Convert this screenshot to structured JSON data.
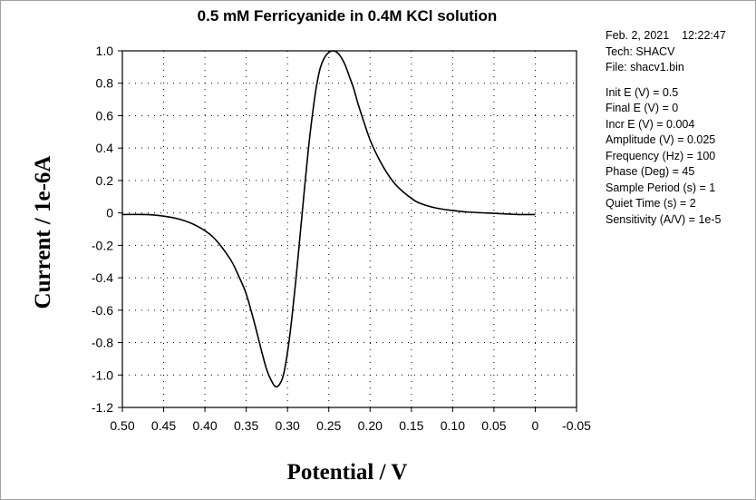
{
  "chart_data": {
    "type": "line",
    "title": "0.5 mM Ferricyanide in 0.4M KCl solution",
    "xlabel": "Potential / V",
    "ylabel": "Current / 1e-6A",
    "xlim": [
      0.5,
      -0.05
    ],
    "ylim": [
      -1.2,
      1.0
    ],
    "x_reversed": true,
    "grid": "dotted",
    "xticks": [
      {
        "v": 0.5,
        "label": "0.50"
      },
      {
        "v": 0.45,
        "label": "0.45"
      },
      {
        "v": 0.4,
        "label": "0.40"
      },
      {
        "v": 0.35,
        "label": "0.35"
      },
      {
        "v": 0.3,
        "label": "0.30"
      },
      {
        "v": 0.25,
        "label": "0.25"
      },
      {
        "v": 0.2,
        "label": "0.20"
      },
      {
        "v": 0.15,
        "label": "0.15"
      },
      {
        "v": 0.1,
        "label": "0.10"
      },
      {
        "v": 0.05,
        "label": "0.05"
      },
      {
        "v": 0.0,
        "label": "0"
      },
      {
        "v": -0.05,
        "label": "-0.05"
      }
    ],
    "yticks": [
      {
        "v": 1.0,
        "label": "1.0"
      },
      {
        "v": 0.8,
        "label": "0.8"
      },
      {
        "v": 0.6,
        "label": "0.6"
      },
      {
        "v": 0.4,
        "label": "0.4"
      },
      {
        "v": 0.2,
        "label": "0.2"
      },
      {
        "v": 0.0,
        "label": "0"
      },
      {
        "v": -0.2,
        "label": "-0.2"
      },
      {
        "v": -0.4,
        "label": "-0.4"
      },
      {
        "v": -0.6,
        "label": "-0.6"
      },
      {
        "v": -0.8,
        "label": "-0.8"
      },
      {
        "v": -1.0,
        "label": "-1.0"
      },
      {
        "v": -1.2,
        "label": "-1.2"
      }
    ],
    "series": [
      {
        "color": "#000000",
        "x": [
          0.5,
          0.47,
          0.45,
          0.43,
          0.41,
          0.39,
          0.37,
          0.36,
          0.35,
          0.34,
          0.335,
          0.33,
          0.325,
          0.32,
          0.315,
          0.31,
          0.305,
          0.3,
          0.295,
          0.29,
          0.285,
          0.28,
          0.275,
          0.27,
          0.265,
          0.26,
          0.255,
          0.25,
          0.245,
          0.24,
          0.235,
          0.23,
          0.225,
          0.22,
          0.215,
          0.21,
          0.2,
          0.19,
          0.18,
          0.17,
          0.16,
          0.15,
          0.14,
          0.12,
          0.1,
          0.08,
          0.06,
          0.04,
          0.02,
          0.0
        ],
        "y": [
          -0.01,
          -0.01,
          -0.02,
          -0.04,
          -0.08,
          -0.15,
          -0.28,
          -0.38,
          -0.5,
          -0.68,
          -0.78,
          -0.88,
          -0.97,
          -1.03,
          -1.07,
          -1.06,
          -1.0,
          -0.86,
          -0.66,
          -0.42,
          -0.15,
          0.12,
          0.38,
          0.6,
          0.78,
          0.9,
          0.96,
          0.99,
          1.0,
          0.99,
          0.96,
          0.91,
          0.84,
          0.77,
          0.68,
          0.6,
          0.45,
          0.34,
          0.25,
          0.18,
          0.13,
          0.09,
          0.06,
          0.03,
          0.015,
          0.005,
          0.0,
          -0.005,
          -0.01,
          -0.01
        ]
      }
    ]
  },
  "info": {
    "date": "Feb. 2, 2021",
    "time": "12:22:47",
    "tech": "Tech: SHACV",
    "file": "File: shacv1.bin",
    "params": [
      "Init E (V) = 0.5",
      "Final E (V) = 0",
      "Incr E (V) = 0.004",
      "Amplitude (V) = 0.025",
      "Frequency (Hz) = 100",
      "Phase (Deg) = 45",
      "Sample Period (s) = 1",
      "Quiet Time (s) = 2",
      "Sensitivity (A/V) = 1e-5"
    ]
  }
}
